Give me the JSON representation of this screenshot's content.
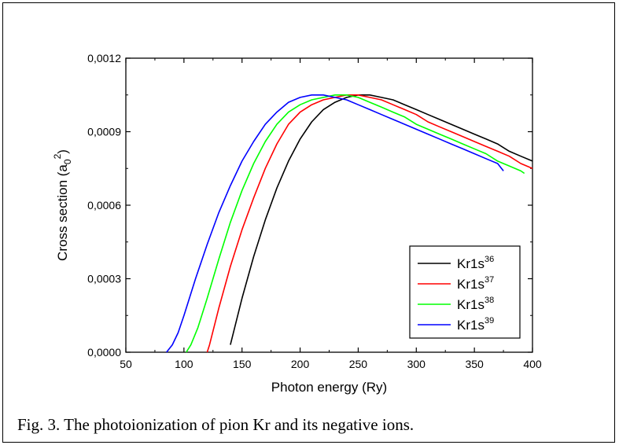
{
  "caption": "Fig. 3. The photoionization of pion Kr and its negative ions.",
  "chart_data": {
    "type": "line",
    "title": "",
    "xlabel": "Photon energy (Ry)",
    "ylabel_main": "Cross section (a",
    "ylabel_sub": "0",
    "ylabel_sup": "2",
    "ylabel_close": ")",
    "xlim": [
      50,
      400
    ],
    "ylim": [
      0,
      0.0012
    ],
    "x_ticks": [
      50,
      100,
      150,
      200,
      250,
      300,
      350,
      400
    ],
    "y_ticks": [
      0,
      0.0003,
      0.0006,
      0.0009,
      0.0012
    ],
    "y_tick_labels": [
      "0,0000",
      "0,0003",
      "0,0006",
      "0,0009",
      "0,0012"
    ],
    "grid": false,
    "legend_position": "lower-right",
    "series": [
      {
        "name_base": "Kr1s",
        "name_sup": "36",
        "color": "#000000",
        "x": [
          140,
          150,
          160,
          170,
          180,
          190,
          200,
          210,
          220,
          230,
          240,
          250,
          260,
          270,
          280,
          290,
          300,
          310,
          320,
          330,
          340,
          350,
          360,
          370,
          380,
          390,
          400
        ],
        "y": [
          3e-05,
          0.00022,
          0.00039,
          0.00054,
          0.00067,
          0.00078,
          0.00087,
          0.00094,
          0.00099,
          0.00102,
          0.00104,
          0.00105,
          0.00105,
          0.00104,
          0.00103,
          0.00101,
          0.00099,
          0.00097,
          0.00095,
          0.00093,
          0.00091,
          0.00089,
          0.00087,
          0.00085,
          0.00082,
          0.0008,
          0.00078
        ]
      },
      {
        "name_base": "Kr1s",
        "name_sup": "37",
        "color": "#ff0000",
        "x": [
          120,
          122,
          130,
          140,
          150,
          160,
          170,
          180,
          190,
          200,
          210,
          220,
          230,
          240,
          250,
          260,
          270,
          280,
          290,
          300,
          310,
          320,
          330,
          340,
          350,
          360,
          370,
          380,
          390,
          400
        ],
        "y": [
          0,
          3e-05,
          0.00018,
          0.00035,
          0.0005,
          0.00063,
          0.00075,
          0.00085,
          0.00093,
          0.00098,
          0.00101,
          0.00103,
          0.00104,
          0.00105,
          0.00105,
          0.00104,
          0.00103,
          0.00101,
          0.00099,
          0.00097,
          0.00094,
          0.00092,
          0.0009,
          0.00088,
          0.00086,
          0.00084,
          0.00082,
          0.0008,
          0.00077,
          0.00075
        ]
      },
      {
        "name_base": "Kr1s",
        "name_sup": "38",
        "color": "#00ff00",
        "x": [
          102,
          106,
          112,
          120,
          130,
          140,
          150,
          160,
          170,
          180,
          190,
          200,
          210,
          220,
          230,
          240,
          250,
          260,
          270,
          280,
          290,
          300,
          310,
          320,
          330,
          340,
          350,
          360,
          370,
          380,
          390,
          393
        ],
        "y": [
          0,
          3e-05,
          0.0001,
          0.00022,
          0.00038,
          0.00053,
          0.00066,
          0.00077,
          0.00086,
          0.00093,
          0.00098,
          0.00101,
          0.00103,
          0.00104,
          0.00105,
          0.00105,
          0.00104,
          0.00102,
          0.001,
          0.00098,
          0.00096,
          0.00093,
          0.00091,
          0.00089,
          0.00087,
          0.00085,
          0.00083,
          0.00081,
          0.00078,
          0.00076,
          0.00074,
          0.00073
        ]
      },
      {
        "name_base": "Kr1s",
        "name_sup": "39",
        "color": "#0000ff",
        "x": [
          85,
          90,
          95,
          100,
          110,
          120,
          130,
          140,
          150,
          160,
          170,
          180,
          190,
          200,
          210,
          220,
          230,
          240,
          250,
          260,
          270,
          280,
          290,
          300,
          310,
          320,
          330,
          340,
          350,
          360,
          370,
          375
        ],
        "y": [
          0,
          3e-05,
          8e-05,
          0.00015,
          0.0003,
          0.00044,
          0.00057,
          0.00068,
          0.00078,
          0.00086,
          0.00093,
          0.00098,
          0.00102,
          0.00104,
          0.00105,
          0.00105,
          0.00104,
          0.00103,
          0.00101,
          0.00099,
          0.00097,
          0.00095,
          0.00093,
          0.00091,
          0.00089,
          0.00087,
          0.00085,
          0.00083,
          0.00081,
          0.00079,
          0.00077,
          0.00074
        ]
      }
    ]
  }
}
